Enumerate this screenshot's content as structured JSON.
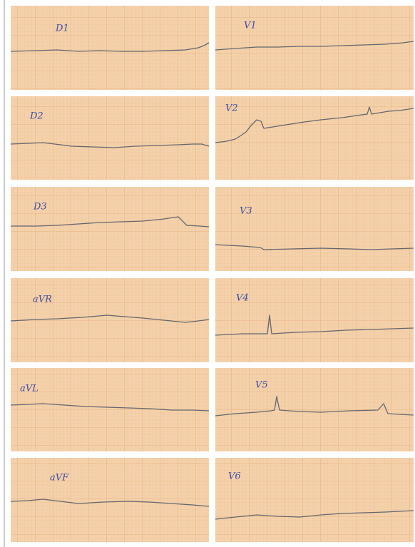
{
  "leads": [
    {
      "label": "D1"
    },
    {
      "label": "V1"
    },
    {
      "label": "D2"
    },
    {
      "label": "V2"
    },
    {
      "label": "D3"
    },
    {
      "label": "V3"
    },
    {
      "label": "aVR"
    },
    {
      "label": "V4"
    },
    {
      "label": "aVL"
    },
    {
      "label": "V5"
    },
    {
      "label": "aVF"
    },
    {
      "label": "V6"
    }
  ]
}
